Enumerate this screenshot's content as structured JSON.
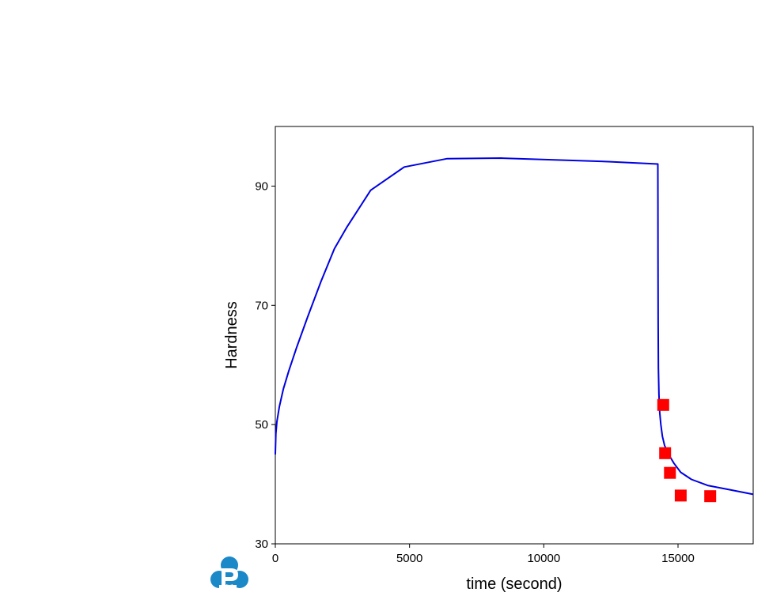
{
  "chart_data": {
    "type": "line",
    "title": "",
    "xlabel": "time (second)",
    "ylabel": "Hardness",
    "xlim": [
      0,
      17800
    ],
    "ylim": [
      30,
      100
    ],
    "xticks": [
      0,
      5000,
      10000,
      15000
    ],
    "yticks": [
      30,
      50,
      70,
      90
    ],
    "grid": false,
    "legend": "none",
    "series": [
      {
        "kind": "line",
        "color": "#0000e0",
        "x": [
          0,
          20,
          60,
          150,
          300,
          500,
          800,
          1200,
          1700,
          2200,
          2650,
          3550,
          4800,
          6400,
          8400,
          10400,
          12400,
          14250,
          14252,
          14255,
          14260,
          14270,
          14290,
          14320,
          14360,
          14420,
          14500,
          14650,
          14850,
          15100,
          15500,
          16100,
          16900,
          17800
        ],
        "y": [
          45,
          48.5,
          50.5,
          53,
          56,
          59,
          63,
          68,
          74,
          79.5,
          83,
          89.3,
          93.2,
          94.6,
          94.7,
          94.4,
          94.1,
          93.7,
          88,
          78,
          67,
          59.5,
          55,
          52,
          50,
          48,
          46.5,
          45,
          43.5,
          42,
          40.8,
          39.8,
          39.1,
          38.3
        ]
      },
      {
        "kind": "scatter",
        "marker": "square",
        "color": "#ff0000",
        "x": [
          14450,
          14520,
          14700,
          15100,
          16200
        ],
        "y": [
          53.3,
          45.2,
          41.9,
          38.1,
          38.0
        ]
      }
    ]
  },
  "colors": {
    "line": "#0000e0",
    "markers": "#ff0000",
    "axes": "#000000",
    "logo": "#1b88c8"
  },
  "logo": {
    "icon": "p-logo-icon"
  }
}
